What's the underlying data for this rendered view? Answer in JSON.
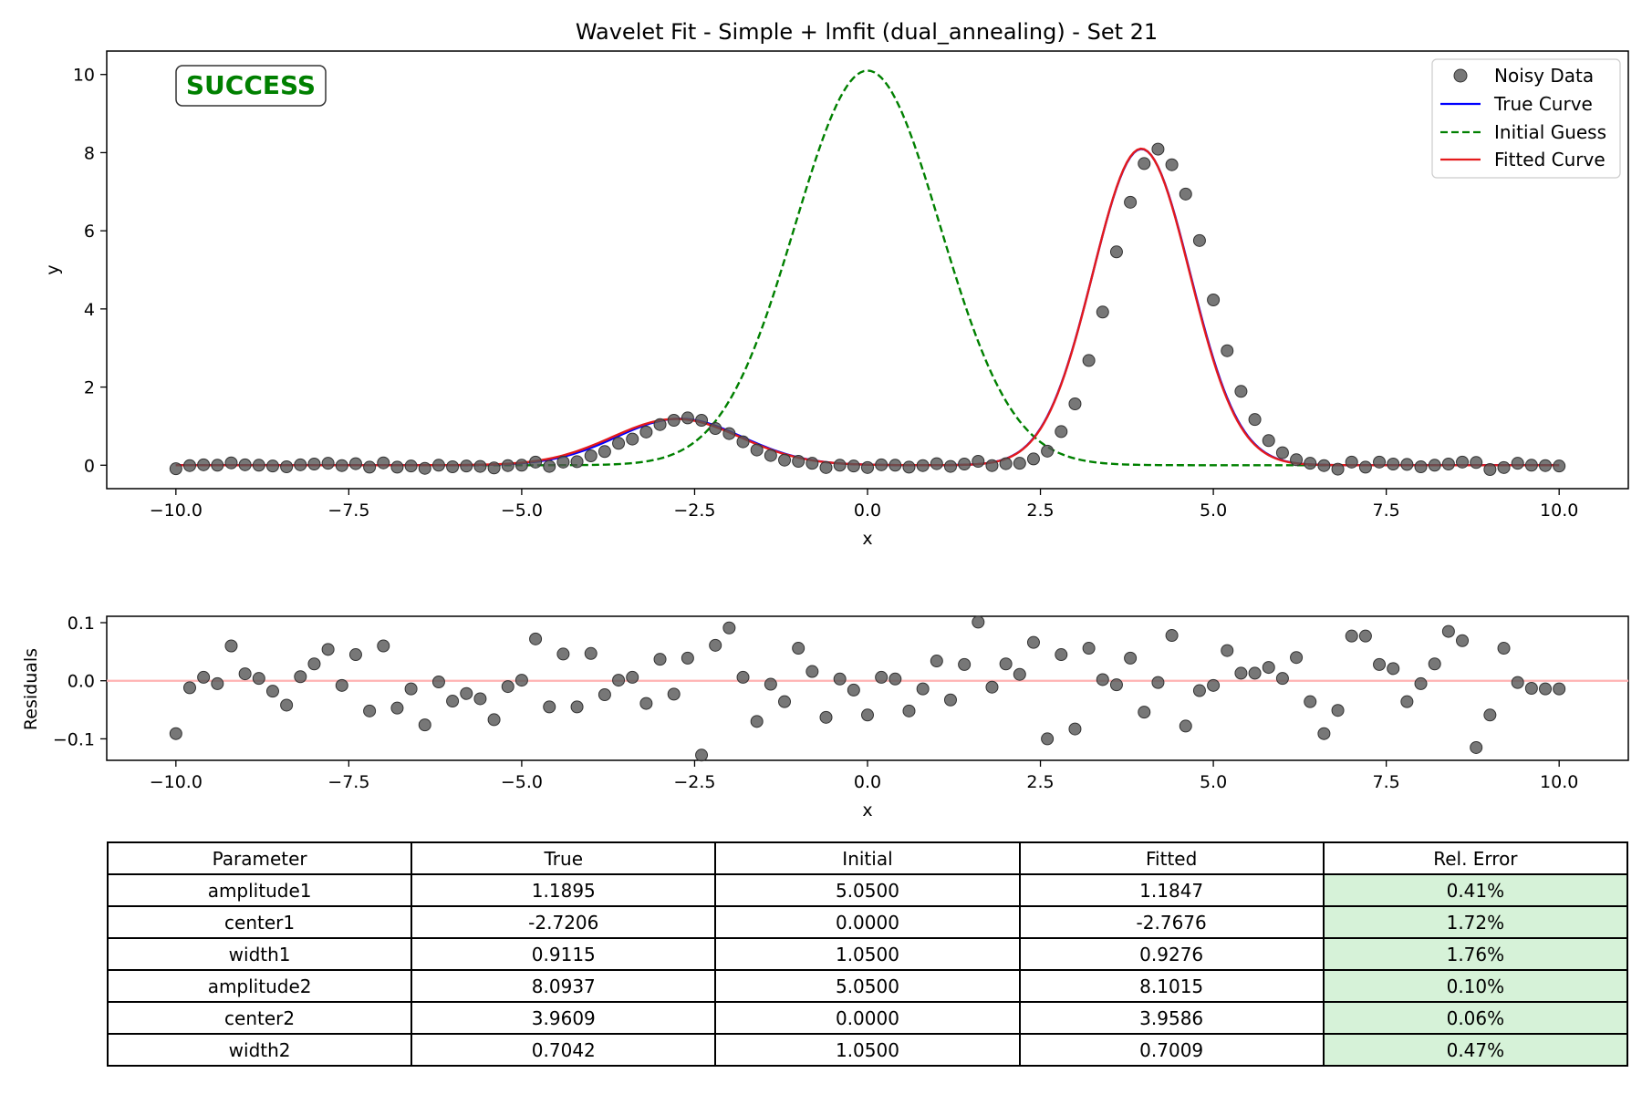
{
  "chart_data": [
    {
      "type": "line",
      "title": "Wavelet Fit - Simple + lmfit (dual_annealing) - Set 21",
      "xlabel": "x",
      "ylabel": "y",
      "xlim": [
        -11.0,
        11.0
      ],
      "ylim": [
        -0.6,
        10.6
      ],
      "xticks": [
        -10.0,
        -7.5,
        -5.0,
        -2.5,
        0.0,
        2.5,
        5.0,
        7.5,
        10.0
      ],
      "xtick_labels": [
        "−10.0",
        "−7.5",
        "−5.0",
        "−2.5",
        "0.0",
        "2.5",
        "5.0",
        "7.5",
        "10.0"
      ],
      "yticks": [
        0,
        2,
        4,
        6,
        8,
        10
      ],
      "ytick_labels": [
        "0",
        "2",
        "4",
        "6",
        "8",
        "10"
      ],
      "grid": false,
      "legend_position": "top-right",
      "status_badge": "SUCCESS",
      "series": [
        {
          "name": "Noisy Data",
          "kind": "scatter",
          "color": "#555555"
        },
        {
          "name": "True Curve",
          "kind": "line",
          "color": "#0000ff",
          "params": {
            "amplitude1": 1.1895,
            "center1": -2.7206,
            "width1": 0.9115,
            "amplitude2": 8.0937,
            "center2": 3.9609,
            "width2": 0.7042
          }
        },
        {
          "name": "Initial Guess",
          "kind": "dashed-line",
          "color": "#008000",
          "params": {
            "amplitude1": 5.05,
            "center1": 0.0,
            "width1": 1.05,
            "amplitude2": 5.05,
            "center2": 0.0,
            "width2": 1.05
          }
        },
        {
          "name": "Fitted Curve",
          "kind": "line",
          "color": "#e41a1c",
          "params": {
            "amplitude1": 1.1847,
            "center1": -2.7676,
            "width1": 0.9276,
            "amplitude2": 8.1015,
            "center2": 3.9586,
            "width2": 0.7009
          }
        }
      ],
      "x": [
        -10.0,
        -9.8,
        -9.6,
        -9.4,
        -9.2,
        -9.0,
        -8.8,
        -8.6,
        -8.4,
        -8.2,
        -8.0,
        -7.8,
        -7.6,
        -7.4,
        -7.2,
        -7.0,
        -6.8,
        -6.6,
        -6.4,
        -6.2,
        -6.0,
        -5.8,
        -5.6,
        -5.4,
        -5.2,
        -5.0,
        -4.8,
        -4.6,
        -4.4,
        -4.2,
        -4.0,
        -3.8,
        -3.6,
        -3.4,
        -3.2,
        -3.0,
        -2.8,
        -2.6,
        -2.4,
        -2.2,
        -2.0,
        -1.8,
        -1.6,
        -1.4,
        -1.2,
        -1.0,
        -0.8,
        -0.6,
        -0.4,
        -0.2,
        0.0,
        0.2,
        0.4,
        0.6,
        0.8,
        1.0,
        1.2,
        1.4,
        1.6,
        1.8,
        2.0,
        2.2,
        2.4,
        2.6,
        2.8,
        3.0,
        3.2,
        3.4,
        3.6,
        3.8,
        4.0,
        4.2,
        4.4,
        4.6,
        4.8,
        5.0,
        5.2,
        5.4,
        5.6,
        5.8,
        6.0,
        6.2,
        6.4,
        6.6,
        6.8,
        7.0,
        7.2,
        7.4,
        7.6,
        7.8,
        8.0,
        8.2,
        8.4,
        8.6,
        8.8,
        9.0,
        9.2,
        9.4,
        9.6,
        9.8,
        10.0
      ],
      "noisy_y": [
        -0.09,
        -0.01,
        0.01,
        0.0,
        0.06,
        0.01,
        0.0,
        -0.02,
        -0.04,
        0.01,
        0.03,
        0.05,
        -0.01,
        0.04,
        -0.05,
        0.06,
        -0.05,
        -0.02,
        -0.08,
        0.0,
        -0.04,
        -0.02,
        -0.03,
        -0.07,
        -0.01,
        0.0,
        0.08,
        -0.03,
        0.08,
        0.09,
        0.24,
        0.35,
        0.56,
        0.67,
        0.85,
        1.04,
        1.15,
        1.21,
        1.15,
        0.94,
        0.81,
        0.6,
        0.39,
        0.25,
        0.13,
        0.1,
        0.05,
        -0.06,
        0.0,
        -0.02,
        -0.06,
        0.01,
        0.0,
        -0.05,
        -0.01,
        0.04,
        -0.03,
        0.03,
        0.1,
        -0.01,
        0.04,
        0.05,
        0.16,
        0.36,
        0.86,
        1.57,
        2.68,
        3.92,
        5.46,
        6.73,
        7.72,
        8.09,
        7.69,
        6.94,
        5.75,
        4.23,
        2.93,
        1.89,
        1.17,
        0.63,
        0.32,
        0.14,
        0.05,
        -0.01,
        -0.1,
        0.08,
        -0.05,
        0.08,
        0.03,
        0.02,
        -0.04,
        0.0,
        0.03,
        0.08,
        0.07,
        -0.11,
        -0.06,
        0.05,
        0.0,
        -0.01,
        -0.02
      ]
    },
    {
      "type": "scatter",
      "xlabel": "x",
      "ylabel": "Residuals",
      "xlim": [
        -11.0,
        11.0
      ],
      "ylim": [
        -0.137,
        0.111
      ],
      "xticks": [
        -10.0,
        -7.5,
        -5.0,
        -2.5,
        0.0,
        2.5,
        5.0,
        7.5,
        10.0
      ],
      "xtick_labels": [
        "−10.0",
        "−7.5",
        "−5.0",
        "−2.5",
        "0.0",
        "2.5",
        "5.0",
        "7.5",
        "10.0"
      ],
      "yticks": [
        0.1,
        0.0,
        -0.1
      ],
      "ytick_labels": [
        "0.1",
        "0.0",
        "−0.1"
      ],
      "reference_line": 0.0,
      "reference_color": "#ffb3b3",
      "point_color": "#555555",
      "x": [
        -10.0,
        -9.8,
        -9.6,
        -9.4,
        -9.2,
        -9.0,
        -8.8,
        -8.6,
        -8.4,
        -8.2,
        -8.0,
        -7.8,
        -7.6,
        -7.4,
        -7.2,
        -7.0,
        -6.8,
        -6.6,
        -6.4,
        -6.2,
        -6.0,
        -5.8,
        -5.6,
        -5.4,
        -5.2,
        -5.0,
        -4.8,
        -4.6,
        -4.4,
        -4.2,
        -4.0,
        -3.8,
        -3.6,
        -3.4,
        -3.2,
        -3.0,
        -2.8,
        -2.6,
        -2.4,
        -2.2,
        -2.0,
        -1.8,
        -1.6,
        -1.4,
        -1.2,
        -1.0,
        -0.8,
        -0.6,
        -0.4,
        -0.2,
        0.0,
        0.2,
        0.4,
        0.6,
        0.8,
        1.0,
        1.2,
        1.4,
        1.6,
        1.8,
        2.0,
        2.2,
        2.4,
        2.6,
        2.8,
        3.0,
        3.2,
        3.4,
        3.6,
        3.8,
        4.0,
        4.2,
        4.4,
        4.6,
        4.8,
        5.0,
        5.2,
        5.4,
        5.6,
        5.8,
        6.0,
        6.2,
        6.4,
        6.6,
        6.8,
        7.0,
        7.2,
        7.4,
        7.6,
        7.8,
        8.0,
        8.2,
        8.4,
        8.6,
        8.8,
        9.0,
        9.2,
        9.4,
        9.6,
        9.8,
        10.0
      ],
      "values": [
        -0.091,
        -0.012,
        0.006,
        -0.005,
        0.06,
        0.012,
        0.004,
        -0.018,
        -0.042,
        0.007,
        0.029,
        0.054,
        -0.008,
        0.045,
        -0.052,
        0.06,
        -0.047,
        -0.014,
        -0.076,
        -0.002,
        -0.035,
        -0.022,
        -0.031,
        -0.067,
        -0.01,
        0.001,
        0.072,
        -0.045,
        0.046,
        -0.045,
        0.047,
        -0.024,
        0.001,
        0.006,
        -0.039,
        0.037,
        -0.023,
        0.039,
        -0.128,
        0.061,
        0.091,
        0.006,
        -0.07,
        -0.006,
        -0.036,
        0.056,
        0.016,
        -0.063,
        0.003,
        -0.016,
        -0.059,
        0.006,
        0.003,
        -0.052,
        -0.014,
        0.034,
        -0.033,
        0.028,
        0.101,
        -0.011,
        0.029,
        0.011,
        0.066,
        -0.1,
        0.045,
        -0.083,
        0.056,
        0.002,
        -0.007,
        0.039,
        -0.054,
        -0.003,
        0.078,
        -0.078,
        -0.017,
        -0.008,
        0.052,
        0.013,
        0.013,
        0.023,
        0.004,
        0.04,
        -0.036,
        -0.091,
        -0.051,
        0.077,
        0.077,
        0.028,
        0.021,
        -0.036,
        -0.005,
        0.029,
        0.085,
        0.069,
        -0.115,
        -0.059,
        0.056,
        -0.003,
        -0.013,
        -0.014,
        -0.014
      ]
    },
    {
      "type": "table",
      "columns": [
        "Parameter",
        "True",
        "Initial",
        "Fitted",
        "Rel. Error"
      ],
      "rows": [
        [
          "amplitude1",
          "1.1895",
          "5.0500",
          "1.1847",
          "0.41%"
        ],
        [
          "center1",
          "-2.7206",
          "0.0000",
          "-2.7676",
          "1.72%"
        ],
        [
          "width1",
          "0.9115",
          "1.0500",
          "0.9276",
          "1.76%"
        ],
        [
          "amplitude2",
          "8.0937",
          "5.0500",
          "8.1015",
          "0.10%"
        ],
        [
          "center2",
          "3.9609",
          "0.0000",
          "3.9586",
          "0.06%"
        ],
        [
          "width2",
          "0.7042",
          "1.0500",
          "0.7009",
          "0.47%"
        ]
      ],
      "rel_error_color": "#d6f2d8"
    }
  ]
}
